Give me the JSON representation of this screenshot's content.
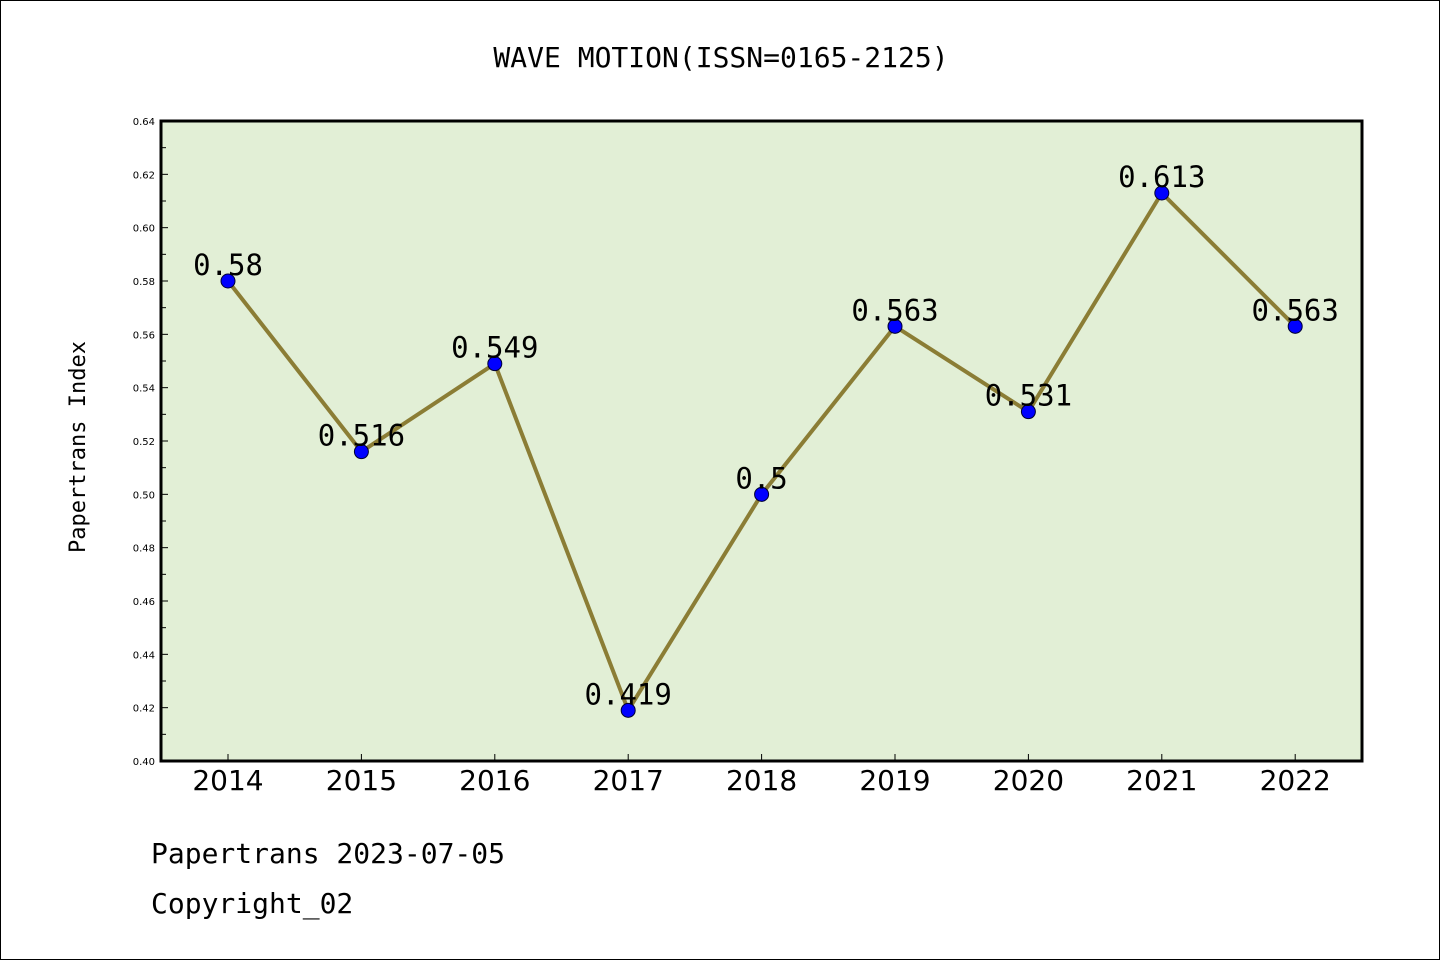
{
  "chart_data": {
    "type": "line",
    "title": "WAVE MOTION(ISSN=0165-2125)",
    "xlabel": "",
    "ylabel": "Papertrans Index",
    "categories": [
      "2014",
      "2015",
      "2016",
      "2017",
      "2018",
      "2019",
      "2020",
      "2021",
      "2022"
    ],
    "series": [
      {
        "values": [
          0.58,
          0.516,
          0.549,
          0.419,
          0.5,
          0.563,
          0.531,
          0.613,
          0.563
        ],
        "data_labels": [
          "0.58",
          "0.516",
          "0.549",
          "0.419",
          "0.5",
          "0.563",
          "0.531",
          "0.613",
          "0.563"
        ]
      }
    ],
    "ylim": [
      0.4,
      0.64
    ],
    "yticks": [
      "0.40",
      "0.42",
      "0.44",
      "0.46",
      "0.48",
      "0.50",
      "0.52",
      "0.54",
      "0.56",
      "0.58",
      "0.60",
      "0.62",
      "0.64"
    ],
    "grid": false,
    "colors": {
      "plot_background": "#e2efd6",
      "line": "#8b7d35",
      "marker": "#0000ff"
    }
  },
  "footer": {
    "source": "Papertrans 2023-07-05",
    "copyright": "Copyright_02"
  }
}
